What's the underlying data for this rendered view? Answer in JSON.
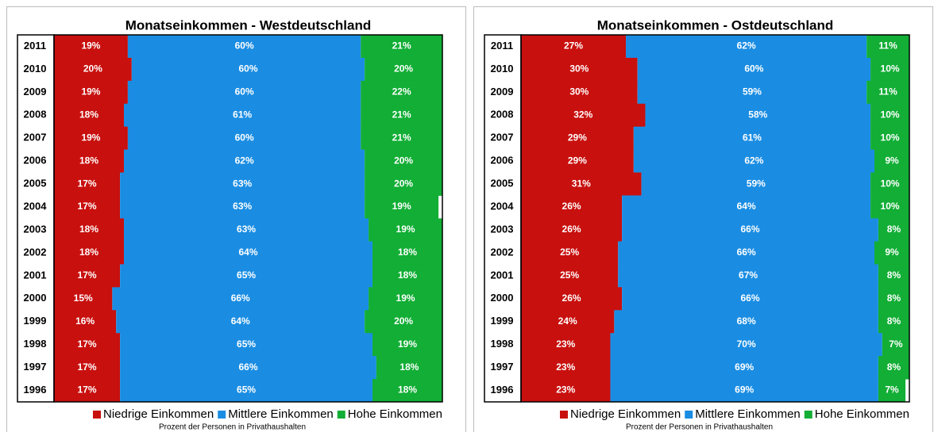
{
  "chart_data": [
    {
      "type": "stacked-bar-horizontal",
      "title": "Monatseinkommen  - Westdeutschland",
      "note": "Prozent der Personen in Privathaushalten",
      "categories": [
        "2011",
        "2010",
        "2009",
        "2008",
        "2007",
        "2006",
        "2005",
        "2004",
        "2003",
        "2002",
        "2001",
        "2000",
        "1999",
        "1998",
        "1997",
        "1996"
      ],
      "xlim": [
        0,
        100
      ],
      "legend": "bottom-right",
      "series": [
        {
          "name": "Niedrige Einkommen",
          "color": "#c8100e",
          "values": [
            19,
            20,
            19,
            18,
            19,
            18,
            17,
            17,
            18,
            18,
            17,
            15,
            16,
            17,
            17,
            17
          ],
          "value_labels": [
            "19%",
            "20%",
            "19%",
            "18%",
            "19%",
            "18%",
            "17%",
            "17%",
            "18%",
            "18%",
            "17%",
            "15%",
            "16%",
            "17%",
            "17%",
            "17%"
          ]
        },
        {
          "name": "Mittlere Einkommen",
          "color": "#1a8de3",
          "values": [
            60,
            60,
            60,
            61,
            60,
            62,
            63,
            63,
            63,
            64,
            65,
            66,
            64,
            65,
            66,
            65
          ],
          "value_labels": [
            "60%",
            "60%",
            "60%",
            "61%",
            "60%",
            "62%",
            "63%",
            "63%",
            "63%",
            "64%",
            "65%",
            "66%",
            "64%",
            "65%",
            "66%",
            "65%"
          ]
        },
        {
          "name": "Hohe Einkommen",
          "color": "#12ae35",
          "values": [
            21,
            20,
            22,
            21,
            21,
            20,
            20,
            19,
            19,
            18,
            18,
            19,
            20,
            19,
            18,
            18
          ],
          "value_labels": [
            "21%",
            "20%",
            "22%",
            "21%",
            "21%",
            "20%",
            "20%",
            "19%",
            "19%",
            "18%",
            "18%",
            "19%",
            "20%",
            "19%",
            "18%",
            "18%"
          ]
        }
      ]
    },
    {
      "type": "stacked-bar-horizontal",
      "title": "Monatseinkommen  - Ostdeutschland",
      "note": "Prozent der Personen in Privathaushalten",
      "categories": [
        "2011",
        "2010",
        "2009",
        "2008",
        "2007",
        "2006",
        "2005",
        "2004",
        "2003",
        "2002",
        "2001",
        "2000",
        "1999",
        "1998",
        "1997",
        "1996"
      ],
      "xlim": [
        0,
        100
      ],
      "legend": "bottom-right",
      "series": [
        {
          "name": "Niedrige Einkommen",
          "color": "#c8100e",
          "values": [
            27,
            30,
            30,
            32,
            29,
            29,
            31,
            26,
            26,
            25,
            25,
            26,
            24,
            23,
            23,
            23
          ],
          "value_labels": [
            "27%",
            "30%",
            "30%",
            "32%",
            "29%",
            "29%",
            "31%",
            "26%",
            "26%",
            "25%",
            "25%",
            "26%",
            "24%",
            "23%",
            "23%",
            "23%"
          ]
        },
        {
          "name": "Mittlere Einkommen",
          "color": "#1a8de3",
          "values": [
            62,
            60,
            59,
            58,
            61,
            62,
            59,
            64,
            66,
            66,
            67,
            66,
            68,
            70,
            69,
            69
          ],
          "value_labels": [
            "62%",
            "60%",
            "59%",
            "58%",
            "61%",
            "62%",
            "59%",
            "64%",
            "66%",
            "66%",
            "67%",
            "66%",
            "68%",
            "70%",
            "69%",
            "69%"
          ]
        },
        {
          "name": "Hohe Einkommen",
          "color": "#12ae35",
          "values": [
            11,
            10,
            11,
            10,
            10,
            9,
            10,
            10,
            8,
            9,
            8,
            8,
            8,
            7,
            8,
            7
          ],
          "value_labels": [
            "11%",
            "10%",
            "11%",
            "10%",
            "10%",
            "9%",
            "10%",
            "10%",
            "8%",
            "9%",
            "8%",
            "8%",
            "8%",
            "7%",
            "8%",
            "7%"
          ]
        }
      ]
    }
  ]
}
